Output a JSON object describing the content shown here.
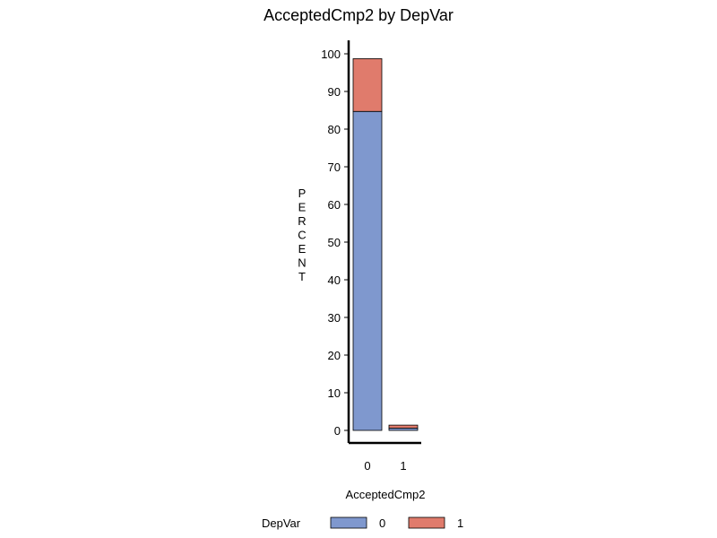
{
  "chart_data": {
    "type": "bar",
    "stacked": true,
    "title": "AcceptedCmp2  by  DepVar",
    "xlabel": "AcceptedCmp2",
    "ylabel": "PERCENT",
    "categories": [
      "0",
      "1"
    ],
    "series": [
      {
        "name": "0",
        "color": "#7f98ce",
        "values": [
          84.7,
          0.6
        ]
      },
      {
        "name": "1",
        "color": "#e07b6c",
        "values": [
          14.0,
          0.8
        ]
      }
    ],
    "ylim": [
      0,
      100
    ],
    "yticks": [
      0,
      10,
      20,
      30,
      40,
      50,
      60,
      70,
      80,
      90,
      100
    ],
    "grid": false,
    "legend": {
      "title": "DepVar",
      "position": "bottom"
    }
  }
}
